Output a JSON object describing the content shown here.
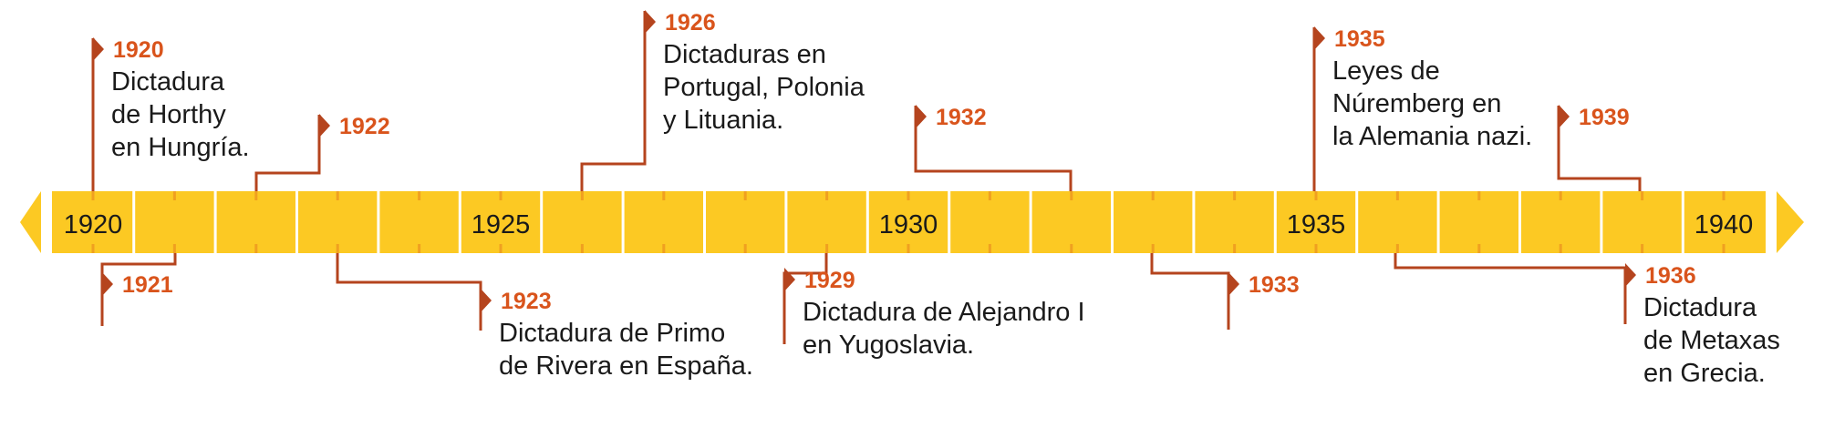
{
  "colors": {
    "band": "#fcc923",
    "band_tick": "#f0a020",
    "arrow": "#fcc923",
    "connector": "#b5441e",
    "year_text": "#d9541c",
    "text": "#1a1a1a",
    "separator": "#ffffff"
  },
  "timeline": {
    "start_year": 1920,
    "end_year": 1940,
    "axis_labels": [
      "1920",
      "1925",
      "1930",
      "1935",
      "1940"
    ]
  },
  "events": [
    {
      "year": "1920",
      "description": [
        "Dictadura",
        "de Horthy",
        "en Hungría."
      ],
      "side": "above"
    },
    {
      "year": "1921",
      "description": [],
      "side": "below"
    },
    {
      "year": "1922",
      "description": [],
      "side": "above"
    },
    {
      "year": "1923",
      "description": [
        "Dictadura de Primo",
        "de Rivera en España."
      ],
      "side": "below"
    },
    {
      "year": "1926",
      "description": [
        "Dictaduras en",
        "Portugal, Polonia",
        "y Lituania."
      ],
      "side": "above"
    },
    {
      "year": "1929",
      "description": [
        "Dictadura de Alejandro I",
        "en Yugoslavia."
      ],
      "side": "below"
    },
    {
      "year": "1932",
      "description": [],
      "side": "above"
    },
    {
      "year": "1933",
      "description": [],
      "side": "below"
    },
    {
      "year": "1935",
      "description": [
        "Leyes de",
        "Núremberg en",
        "la Alemania nazi."
      ],
      "side": "above"
    },
    {
      "year": "1936",
      "description": [
        "Dictadura",
        "de Metaxas",
        "en Grecia."
      ],
      "side": "below"
    },
    {
      "year": "1939",
      "description": [],
      "side": "above"
    }
  ]
}
